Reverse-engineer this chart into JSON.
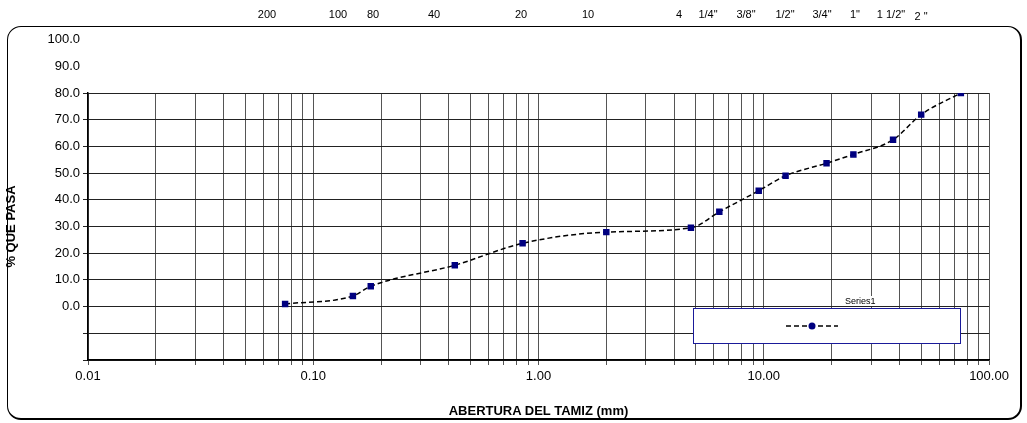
{
  "chart_data": {
    "type": "line",
    "xlabel": "ABERTURA DEL TAMIZ (mm)",
    "ylabel": "% QUE PASA",
    "x": [
      0.075,
      0.15,
      0.18,
      0.425,
      0.85,
      2.0,
      4.75,
      6.35,
      9.5,
      12.5,
      19,
      25,
      37.5,
      50,
      75
    ],
    "series": [
      {
        "name": "Series1",
        "color": "#000080",
        "values": [
          1,
          4,
          7.6,
          15.5,
          23.7,
          27.9,
          29.5,
          35.5,
          43.4,
          49,
          53.7,
          57,
          62.5,
          71.9,
          80
        ]
      }
    ],
    "log": "x",
    "xlim": [
      0.01,
      100
    ],
    "xticks": [
      {
        "value": 0.01,
        "label": "0.01"
      },
      {
        "value": 0.02,
        "label": null
      },
      {
        "value": 0.03,
        "label": null
      },
      {
        "value": 0.04,
        "label": null
      },
      {
        "value": 0.05,
        "label": null
      },
      {
        "value": 0.06,
        "label": null
      },
      {
        "value": 0.07,
        "label": null
      },
      {
        "value": 0.08,
        "label": null
      },
      {
        "value": 0.09,
        "label": null
      },
      {
        "value": 0.1,
        "label": "0.10"
      },
      {
        "value": 0.2,
        "label": null
      },
      {
        "value": 0.3,
        "label": null
      },
      {
        "value": 0.4,
        "label": null
      },
      {
        "value": 0.5,
        "label": null
      },
      {
        "value": 0.6,
        "label": null
      },
      {
        "value": 0.7,
        "label": null
      },
      {
        "value": 0.8,
        "label": null
      },
      {
        "value": 0.9,
        "label": null
      },
      {
        "value": 1,
        "label": "1.00"
      },
      {
        "value": 2,
        "label": null
      },
      {
        "value": 3,
        "label": null
      },
      {
        "value": 4,
        "label": null
      },
      {
        "value": 5,
        "label": null
      },
      {
        "value": 6,
        "label": null
      },
      {
        "value": 7,
        "label": null
      },
      {
        "value": 8,
        "label": null
      },
      {
        "value": 9,
        "label": null
      },
      {
        "value": 10,
        "label": "10.00"
      },
      {
        "value": 20,
        "label": null
      },
      {
        "value": 30,
        "label": null
      },
      {
        "value": 40,
        "label": null
      },
      {
        "value": 50,
        "label": null
      },
      {
        "value": 60,
        "label": null
      },
      {
        "value": 70,
        "label": null
      },
      {
        "value": 80,
        "label": null
      },
      {
        "value": 90,
        "label": null
      },
      {
        "value": 100,
        "label": "100.00"
      }
    ],
    "ylim": [
      -20,
      80
    ],
    "yticks": [
      {
        "value": -20,
        "label": null
      },
      {
        "value": -10,
        "label": null
      },
      {
        "value": 0,
        "label": "0.0"
      },
      {
        "value": 10,
        "label": "10.0"
      },
      {
        "value": 20,
        "label": "20.0"
      },
      {
        "value": 30,
        "label": "30.0"
      },
      {
        "value": 40,
        "label": "40.0"
      },
      {
        "value": 50,
        "label": "50.0"
      },
      {
        "value": 60,
        "label": "60.0"
      },
      {
        "value": 70,
        "label": "70.0"
      },
      {
        "value": 80,
        "label": "80.0"
      }
    ],
    "annotations": [
      "100.0",
      "90.0",
      "200",
      "100",
      "80",
      "40",
      "20",
      "10",
      "4",
      "1/4\"",
      "3/8\"",
      "1/2\"",
      "3/4\"",
      "1\"",
      "1 1/2\"",
      "2 \""
    ],
    "grid": true,
    "legend": "bottom right",
    "marker": "square",
    "line_style": "dashed"
  }
}
